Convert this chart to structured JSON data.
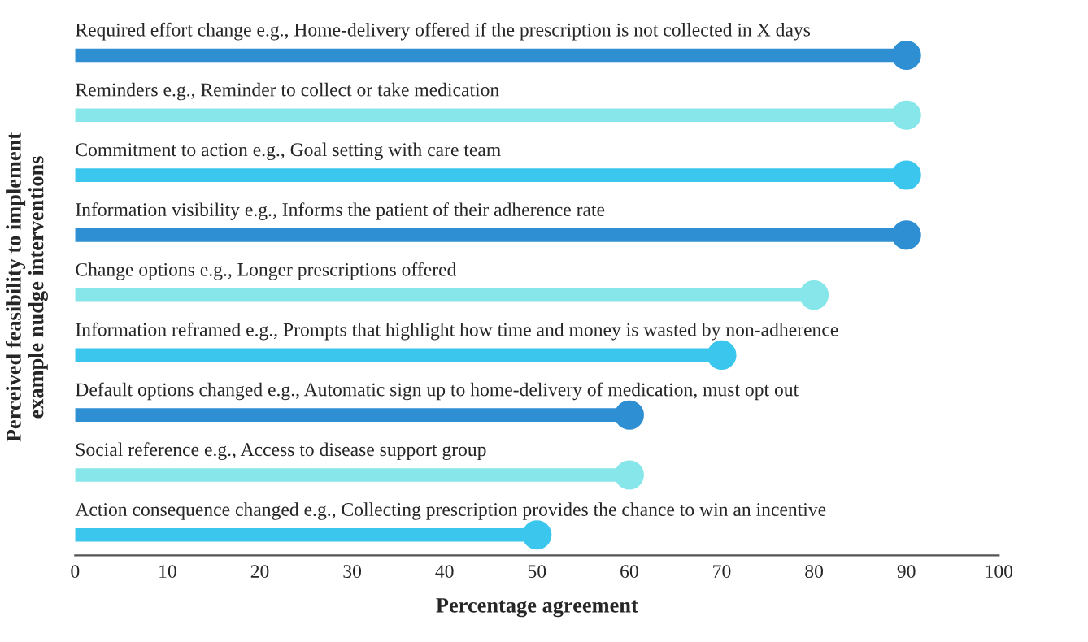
{
  "chart_data": {
    "type": "lollipop",
    "orientation": "horizontal",
    "marker": "circle",
    "xlabel": "Percentage agreement",
    "ylabel": "Perceived feasibility to implement\nexample nudge interventions",
    "categories": [
      "Required effort change e.g., Home-delivery offered if the prescription is not collected in X days",
      "Reminders e.g., Reminder to collect or take medication",
      "Commitment to action e.g., Goal setting with care team",
      "Information visibility e.g., Informs the patient of their adherence rate",
      "Change options e.g., Longer prescriptions offered",
      "Information reframed e.g., Prompts that highlight how time and money is wasted by non-adherence",
      "Default options changed e.g., Automatic sign up to home-delivery of medication, must opt out",
      "Social reference e.g., Access to disease support group",
      "Action consequence changed e.g., Collecting prescription provides the chance to win an incentive"
    ],
    "values": [
      90,
      90,
      90,
      90,
      80,
      70,
      60,
      60,
      50
    ],
    "colors": [
      "#2e8fd3",
      "#86e6e9",
      "#3bc6ee",
      "#2e8fd3",
      "#86e6e9",
      "#3bc6ee",
      "#2e8fd3",
      "#86e6e9",
      "#3bc6ee"
    ],
    "xlim": [
      0,
      100
    ],
    "xticks": [
      0,
      10,
      20,
      30,
      40,
      50,
      60,
      70,
      80,
      90,
      100
    ]
  }
}
